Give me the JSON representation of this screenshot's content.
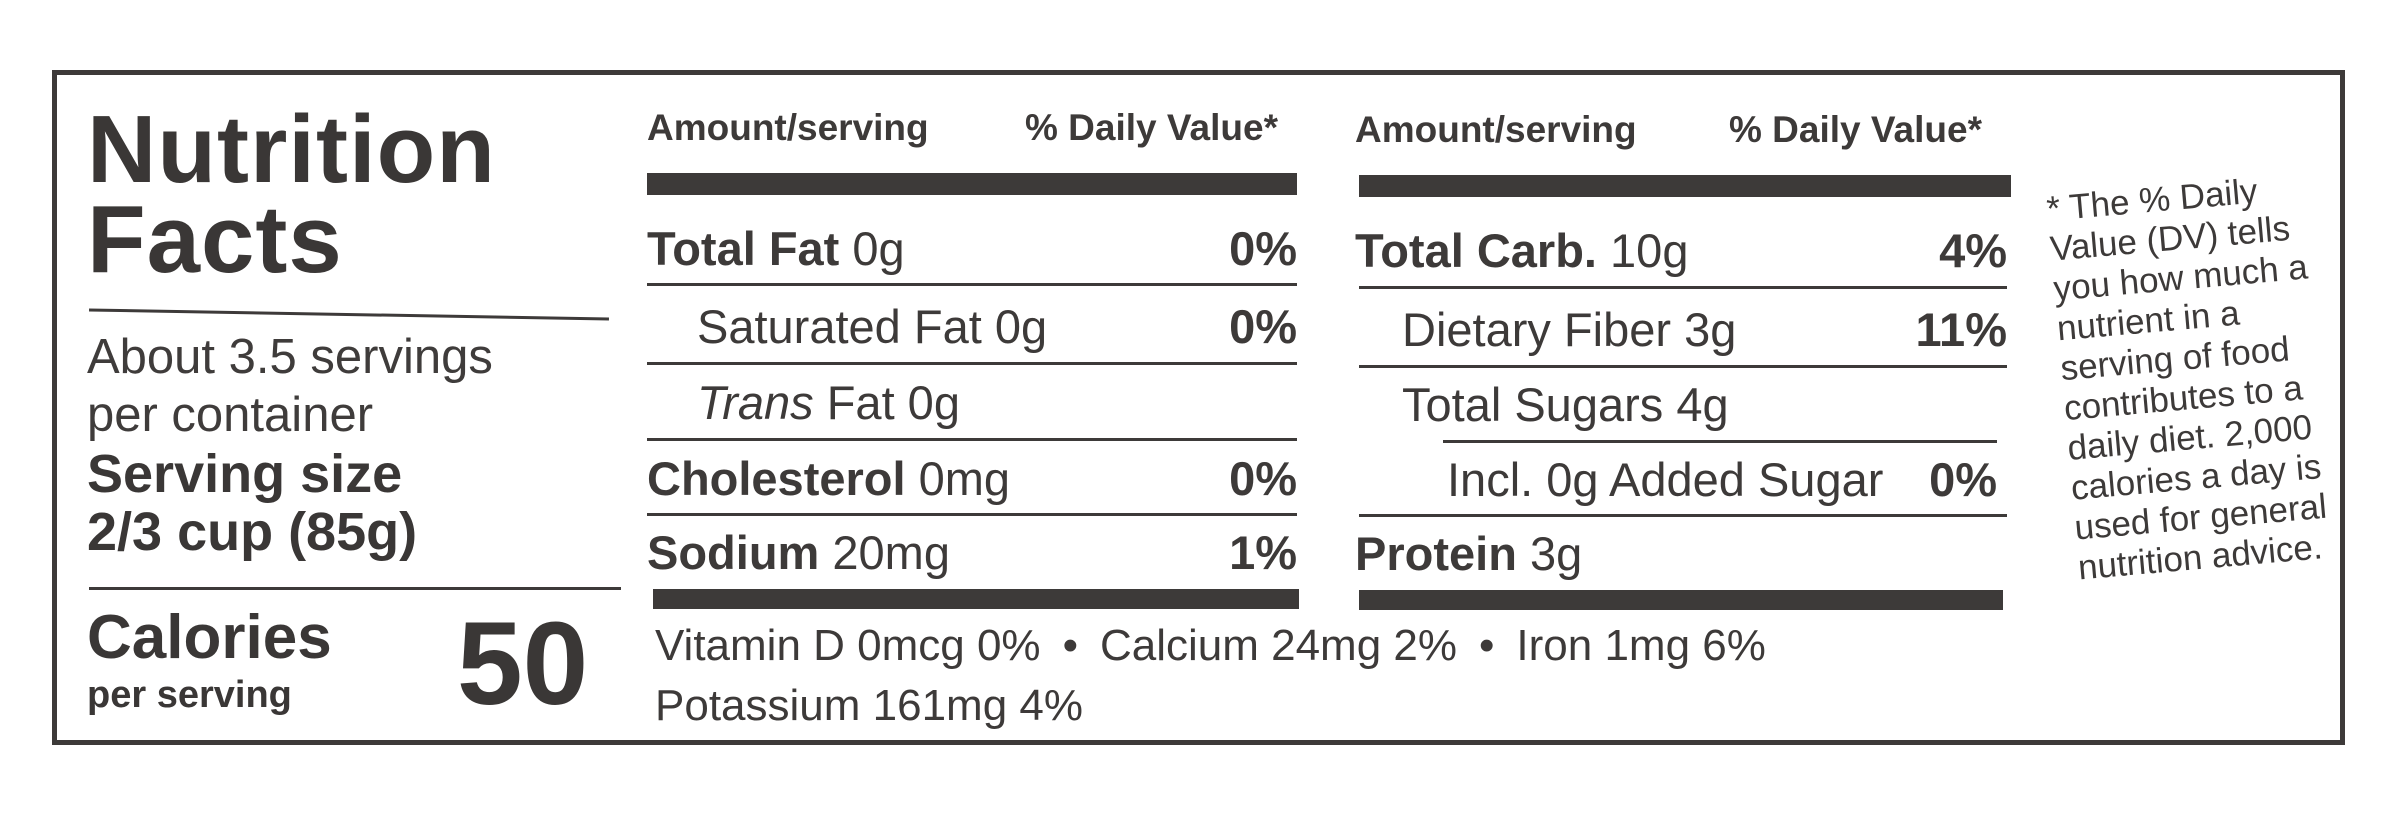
{
  "title_line1": "Nutrition",
  "title_line2": "Facts",
  "servings_line1": "About 3.5 servings",
  "servings_line2": "per container",
  "serving_size_label": "Serving size",
  "serving_size_value": "2/3 cup (85g)",
  "calories_label": "Calories",
  "calories_sub": "per serving",
  "calories_value": "50",
  "left_table": {
    "header_amount": "Amount/serving",
    "header_dv": "% Daily Value*",
    "rows": [
      {
        "name": "Total Fat",
        "amount": "0g",
        "dv": "0%"
      },
      {
        "name": "Saturated Fat",
        "amount": "0g",
        "dv": "0%"
      },
      {
        "name": "Trans",
        "amount": "Fat 0g",
        "dv": ""
      },
      {
        "name": "Cholesterol",
        "amount": "0mg",
        "dv": "0%"
      },
      {
        "name": "Sodium",
        "amount": "20mg",
        "dv": "1%"
      }
    ]
  },
  "right_table": {
    "header_amount": "Amount/serving",
    "header_dv": "% Daily Value*",
    "rows": [
      {
        "name": "Total Carb.",
        "amount": "10g",
        "dv": "4%"
      },
      {
        "name": "Dietary Fiber",
        "amount": "3g",
        "dv": "11%"
      },
      {
        "name": "Total Sugars",
        "amount": "4g",
        "dv": ""
      },
      {
        "name": "Incl. 0g Added Sugar",
        "amount": "",
        "dv": "0%"
      },
      {
        "name": "Protein",
        "amount": "3g",
        "dv": ""
      }
    ]
  },
  "vitamins": {
    "vitamin_d": "Vitamin D 0mcg 0%",
    "calcium": "Calcium 24mg 2%",
    "iron": "Iron 1mg 6%",
    "potassium": "Potassium 161mg 4%",
    "bullet": "•"
  },
  "footnote": "* The % Daily Value (DV) tells you how much a nutrient in a serving of food contributes to a daily diet. 2,000 calories a day is used for general nutrition advice."
}
